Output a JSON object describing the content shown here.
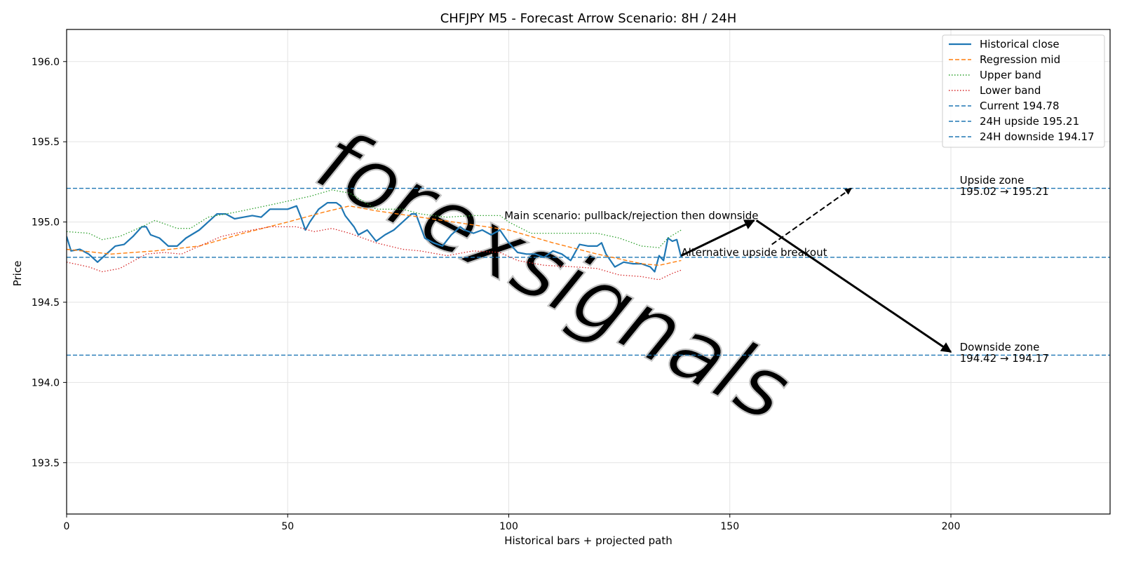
{
  "chart_data": {
    "type": "line",
    "title": "CHFJPY M5 - Forecast Arrow Scenario: 8H / 24H",
    "xlabel": "Historical bars + projected path",
    "ylabel": "Price",
    "xlim": [
      0,
      236
    ],
    "ylim": [
      193.18,
      196.2
    ],
    "x_ticks": [
      0,
      50,
      100,
      150,
      200
    ],
    "y_ticks": [
      193.5,
      194.0,
      194.5,
      195.0,
      195.5,
      196.0
    ],
    "y_tick_labels": [
      "193.5",
      "194.0",
      "194.5",
      "195.0",
      "195.5",
      "196.0"
    ],
    "grid": true,
    "legend_position": "top-right",
    "watermark": "forexsignals",
    "colors": {
      "close": "#1f77b4",
      "mid": "#ff7f0e",
      "upper": "#2ca02c",
      "lower": "#d62728",
      "levels": "#1f77b4",
      "arrows": "#000000"
    },
    "legend": [
      {
        "label": "Historical close",
        "series": "close",
        "style": "solid"
      },
      {
        "label": "Regression mid",
        "series": "mid",
        "style": "dashed"
      },
      {
        "label": "Upper band",
        "series": "upper",
        "style": "dotted"
      },
      {
        "label": "Lower band",
        "series": "lower",
        "style": "dotted"
      },
      {
        "label": "Current 194.78",
        "series": "levels",
        "style": "dashed"
      },
      {
        "label": "24H upside 195.21",
        "series": "levels",
        "style": "dashed"
      },
      {
        "label": "24H downside 194.17",
        "series": "levels",
        "style": "dashed"
      }
    ],
    "levels": [
      {
        "name": "Current",
        "value": 194.78
      },
      {
        "name": "24H upside",
        "value": 195.21
      },
      {
        "name": "24H downside",
        "value": 194.17
      }
    ],
    "series": [
      {
        "key": "close",
        "knots": [
          [
            0,
            194.91
          ],
          [
            1,
            194.82
          ],
          [
            3,
            194.83
          ],
          [
            5,
            194.8
          ],
          [
            7,
            194.75
          ],
          [
            9,
            194.8
          ],
          [
            11,
            194.85
          ],
          [
            13,
            194.86
          ],
          [
            15,
            194.91
          ],
          [
            17,
            194.97
          ],
          [
            18,
            194.97
          ],
          [
            19,
            194.92
          ],
          [
            21,
            194.9
          ],
          [
            23,
            194.85
          ],
          [
            25,
            194.85
          ],
          [
            27,
            194.9
          ],
          [
            30,
            194.95
          ],
          [
            32,
            195.0
          ],
          [
            34,
            195.05
          ],
          [
            36,
            195.05
          ],
          [
            38,
            195.02
          ],
          [
            40,
            195.03
          ],
          [
            42,
            195.04
          ],
          [
            44,
            195.03
          ],
          [
            46,
            195.08
          ],
          [
            48,
            195.08
          ],
          [
            50,
            195.08
          ],
          [
            52,
            195.1
          ],
          [
            53,
            195.03
          ],
          [
            54,
            194.95
          ],
          [
            55,
            195.0
          ],
          [
            57,
            195.08
          ],
          [
            59,
            195.12
          ],
          [
            61,
            195.12
          ],
          [
            62,
            195.1
          ],
          [
            63,
            195.04
          ],
          [
            65,
            194.97
          ],
          [
            66,
            194.92
          ],
          [
            68,
            194.95
          ],
          [
            70,
            194.88
          ],
          [
            72,
            194.92
          ],
          [
            74,
            194.95
          ],
          [
            76,
            195.0
          ],
          [
            78,
            195.05
          ],
          [
            79,
            195.05
          ],
          [
            81,
            194.9
          ],
          [
            83,
            194.87
          ],
          [
            85,
            194.85
          ],
          [
            87,
            194.92
          ],
          [
            89,
            194.97
          ],
          [
            90,
            194.95
          ],
          [
            92,
            194.93
          ],
          [
            94,
            194.95
          ],
          [
            96,
            194.92
          ],
          [
            98,
            194.95
          ],
          [
            100,
            194.87
          ],
          [
            102,
            194.81
          ],
          [
            104,
            194.8
          ],
          [
            106,
            194.8
          ],
          [
            108,
            194.78
          ],
          [
            110,
            194.82
          ],
          [
            112,
            194.8
          ],
          [
            114,
            194.76
          ],
          [
            116,
            194.86
          ],
          [
            118,
            194.85
          ],
          [
            120,
            194.85
          ],
          [
            121,
            194.87
          ],
          [
            122,
            194.8
          ],
          [
            124,
            194.72
          ],
          [
            126,
            194.75
          ],
          [
            128,
            194.74
          ],
          [
            130,
            194.74
          ],
          [
            132,
            194.72
          ],
          [
            133,
            194.69
          ],
          [
            134,
            194.79
          ],
          [
            135,
            194.76
          ],
          [
            136,
            194.9
          ],
          [
            137,
            194.88
          ],
          [
            138,
            194.89
          ],
          [
            139,
            194.78
          ]
        ]
      },
      {
        "key": "mid",
        "knots": [
          [
            0,
            194.83
          ],
          [
            10,
            194.8
          ],
          [
            20,
            194.82
          ],
          [
            30,
            194.85
          ],
          [
            40,
            194.93
          ],
          [
            50,
            195.0
          ],
          [
            58,
            195.06
          ],
          [
            64,
            195.1
          ],
          [
            70,
            195.07
          ],
          [
            80,
            195.03
          ],
          [
            90,
            194.99
          ],
          [
            100,
            194.95
          ],
          [
            110,
            194.87
          ],
          [
            120,
            194.8
          ],
          [
            130,
            194.74
          ],
          [
            134,
            194.73
          ],
          [
            139,
            194.76
          ]
        ]
      },
      {
        "key": "upper",
        "knots": [
          [
            0,
            194.94
          ],
          [
            5,
            194.93
          ],
          [
            8,
            194.89
          ],
          [
            12,
            194.91
          ],
          [
            17,
            194.97
          ],
          [
            20,
            195.01
          ],
          [
            25,
            194.96
          ],
          [
            28,
            194.96
          ],
          [
            32,
            195.03
          ],
          [
            38,
            195.06
          ],
          [
            45,
            195.1
          ],
          [
            50,
            195.13
          ],
          [
            55,
            195.16
          ],
          [
            60,
            195.2
          ],
          [
            64,
            195.18
          ],
          [
            70,
            195.08
          ],
          [
            76,
            195.08
          ],
          [
            80,
            195.05
          ],
          [
            86,
            195.03
          ],
          [
            92,
            195.04
          ],
          [
            98,
            195.04
          ],
          [
            100,
            195.0
          ],
          [
            105,
            194.93
          ],
          [
            110,
            194.93
          ],
          [
            115,
            194.93
          ],
          [
            120,
            194.93
          ],
          [
            125,
            194.9
          ],
          [
            130,
            194.85
          ],
          [
            134,
            194.84
          ],
          [
            136,
            194.9
          ],
          [
            139,
            194.95
          ]
        ]
      },
      {
        "key": "lower",
        "knots": [
          [
            0,
            194.75
          ],
          [
            5,
            194.72
          ],
          [
            8,
            194.69
          ],
          [
            12,
            194.71
          ],
          [
            18,
            194.8
          ],
          [
            22,
            194.81
          ],
          [
            26,
            194.8
          ],
          [
            30,
            194.85
          ],
          [
            35,
            194.91
          ],
          [
            40,
            194.94
          ],
          [
            46,
            194.97
          ],
          [
            52,
            194.97
          ],
          [
            56,
            194.94
          ],
          [
            60,
            194.96
          ],
          [
            64,
            194.93
          ],
          [
            70,
            194.87
          ],
          [
            76,
            194.83
          ],
          [
            80,
            194.82
          ],
          [
            86,
            194.79
          ],
          [
            92,
            194.82
          ],
          [
            98,
            194.81
          ],
          [
            102,
            194.76
          ],
          [
            108,
            194.73
          ],
          [
            115,
            194.72
          ],
          [
            120,
            194.71
          ],
          [
            125,
            194.67
          ],
          [
            130,
            194.66
          ],
          [
            134,
            194.64
          ],
          [
            137,
            194.68
          ],
          [
            139,
            194.7
          ]
        ]
      }
    ],
    "arrows": [
      {
        "name": "main-leg-1",
        "from": [
          139,
          194.79
        ],
        "to": [
          155.5,
          195.01
        ],
        "style": "solid"
      },
      {
        "name": "main-leg-2",
        "from": [
          156,
          195.01
        ],
        "to": [
          200,
          194.19
        ],
        "style": "solid"
      },
      {
        "name": "alt-leg",
        "from": [
          159.5,
          194.86
        ],
        "to": [
          177.5,
          195.21
        ],
        "style": "dashed"
      }
    ],
    "annotations": [
      {
        "name": "main-scenario-label",
        "text": "Main scenario: pullback/rejection then downside",
        "x": 99,
        "y": 195.0
      },
      {
        "name": "alt-scenario-label",
        "text": "Alternative upside breakout",
        "x": 139,
        "y": 194.77
      },
      {
        "name": "upside-zone-label",
        "text": "Upside zone",
        "x": 202,
        "y": 195.22
      },
      {
        "name": "upside-zone-range",
        "text": "195.02 → 195.21",
        "x": 202,
        "y": 195.15
      },
      {
        "name": "downside-zone-label",
        "text": "Downside zone",
        "x": 202,
        "y": 194.18
      },
      {
        "name": "downside-zone-range",
        "text": "194.42 → 194.17",
        "x": 202,
        "y": 194.11
      }
    ]
  }
}
